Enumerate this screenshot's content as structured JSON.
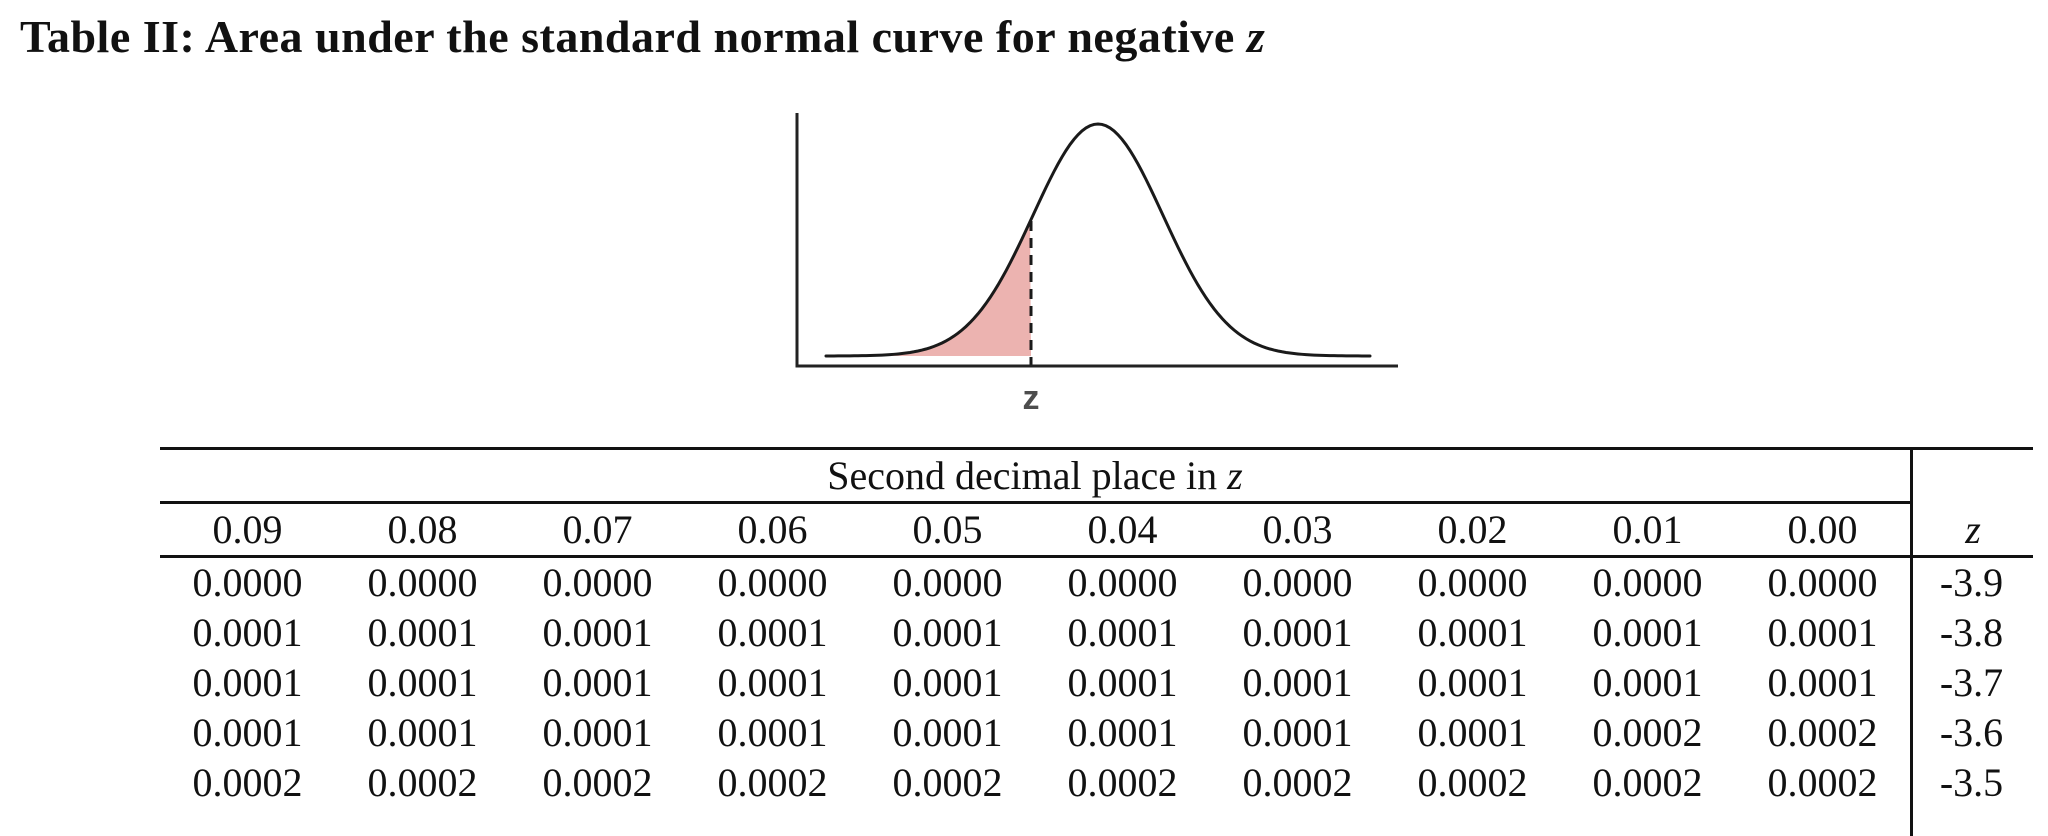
{
  "title": {
    "text": "Table II: Area under the standard normal curve for negative ",
    "math_var": "z"
  },
  "figure": {
    "z_marker_label": "z",
    "shade_color": "#ecb3b0",
    "curve_color": "#1a1a1a",
    "label_color": "#4d4d4d"
  },
  "table": {
    "group_header": {
      "text": "Second decimal place in ",
      "math_var": "z"
    },
    "columns": [
      "0.09",
      "0.08",
      "0.07",
      "0.06",
      "0.05",
      "0.04",
      "0.03",
      "0.02",
      "0.01",
      "0.00"
    ],
    "z_col_header": "z",
    "rows": [
      {
        "z": "-3.9",
        "values": [
          "0.0000",
          "0.0000",
          "0.0000",
          "0.0000",
          "0.0000",
          "0.0000",
          "0.0000",
          "0.0000",
          "0.0000",
          "0.0000"
        ]
      },
      {
        "z": "-3.8",
        "values": [
          "0.0001",
          "0.0001",
          "0.0001",
          "0.0001",
          "0.0001",
          "0.0001",
          "0.0001",
          "0.0001",
          "0.0001",
          "0.0001"
        ]
      },
      {
        "z": "-3.7",
        "values": [
          "0.0001",
          "0.0001",
          "0.0001",
          "0.0001",
          "0.0001",
          "0.0001",
          "0.0001",
          "0.0001",
          "0.0001",
          "0.0001"
        ]
      },
      {
        "z": "-3.6",
        "values": [
          "0.0001",
          "0.0001",
          "0.0001",
          "0.0001",
          "0.0001",
          "0.0001",
          "0.0001",
          "0.0001",
          "0.0002",
          "0.0002"
        ]
      },
      {
        "z": "-3.5",
        "values": [
          "0.0002",
          "0.0002",
          "0.0002",
          "0.0002",
          "0.0002",
          "0.0002",
          "0.0002",
          "0.0002",
          "0.0002",
          "0.0002"
        ]
      }
    ]
  }
}
